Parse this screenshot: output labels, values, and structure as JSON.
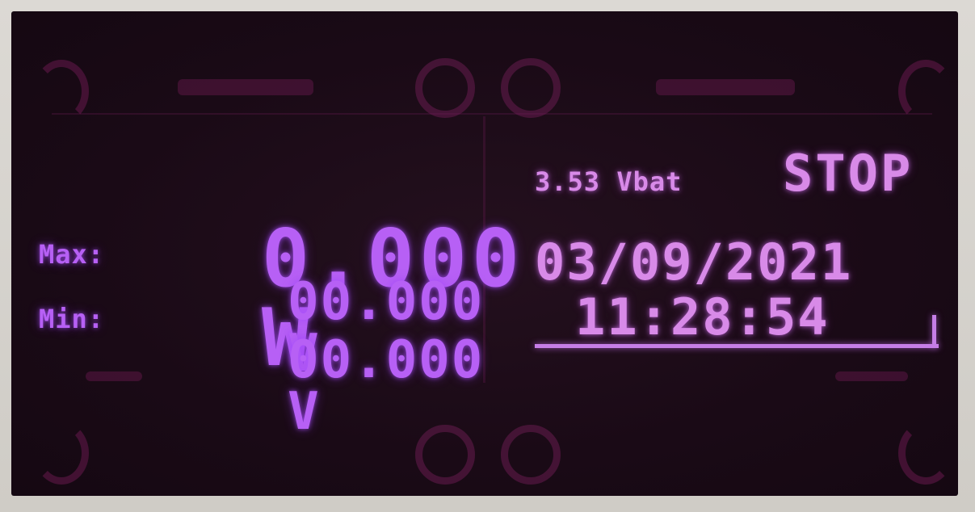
{
  "power": {
    "value": "0.000",
    "unit": "W"
  },
  "max": {
    "label": "Max:",
    "value": "00.000",
    "unit": "V"
  },
  "min": {
    "label": "Min:",
    "value": "00.000",
    "unit": "V"
  },
  "battery": {
    "text": "3.53 Vbat"
  },
  "status": {
    "text": "STOP"
  },
  "clock": {
    "date": "03/09/2021",
    "time": "11:28:54"
  },
  "colors": {
    "display_glow": "#b760f5",
    "display_secondary": "#d88ae8",
    "background": "#1a0a16"
  }
}
